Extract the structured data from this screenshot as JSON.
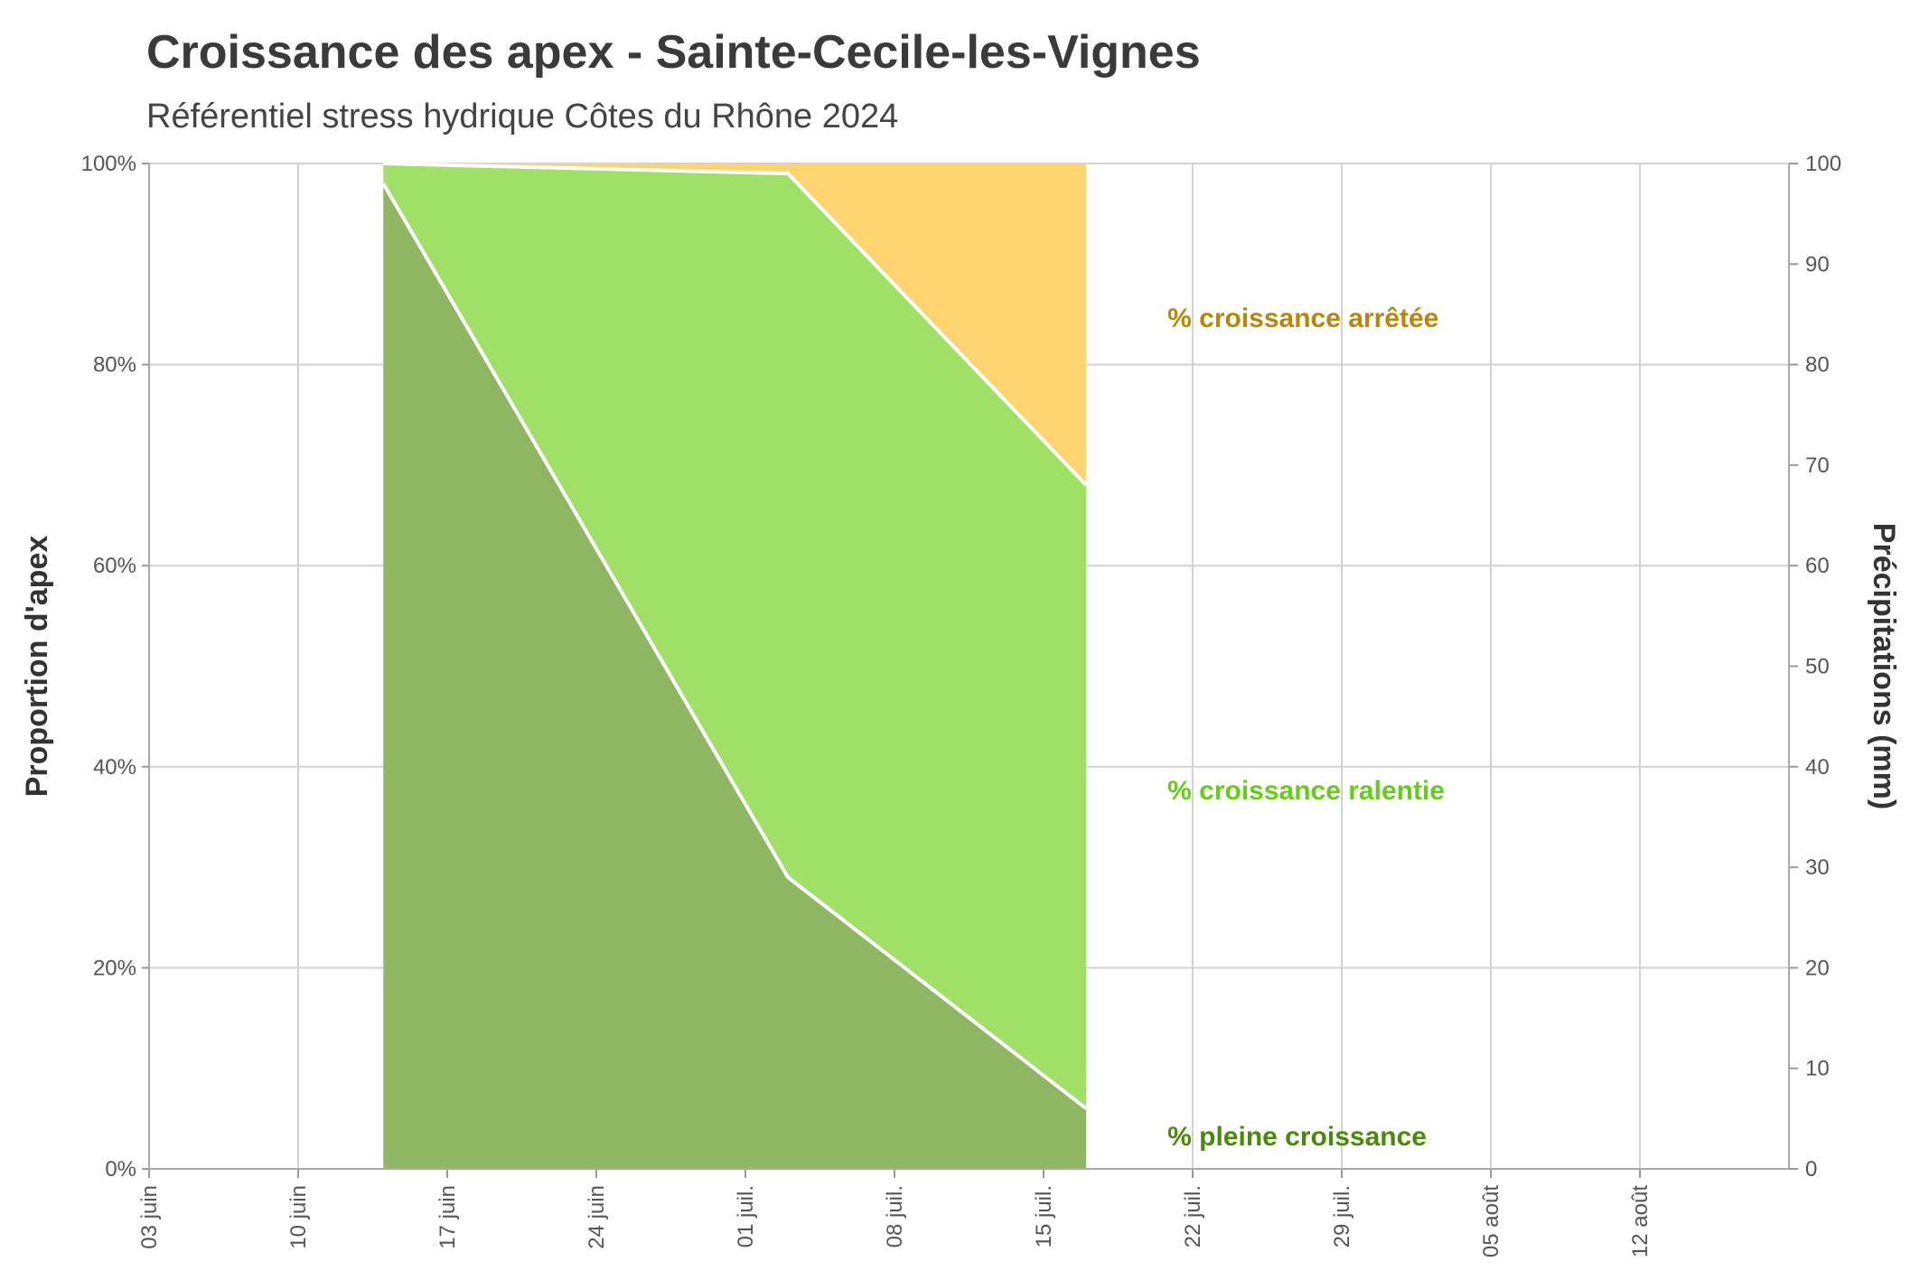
{
  "chart_data": {
    "type": "area",
    "title": "Croissance des apex - Sainte-Cecile-les-Vignes",
    "subtitle": "Référentiel stress hydrique Côtes du Rhône 2024",
    "ylabel": "Proportion d'apex",
    "y2label": "Précipitations (mm)",
    "ylim": [
      0,
      100
    ],
    "y2lim": [
      0,
      100
    ],
    "y_ticks": [
      "0%",
      "20%",
      "40%",
      "60%",
      "80%",
      "100%"
    ],
    "y2_ticks": [
      "0",
      "10",
      "20",
      "30",
      "40",
      "50",
      "60",
      "70",
      "80",
      "90",
      "100"
    ],
    "x_ticks": [
      "03 juin",
      "10 juin",
      "17 juin",
      "24 juin",
      "01 juil.",
      "08 juil.",
      "15 juil.",
      "22 juil.",
      "29 juil.",
      "05 août",
      "12 août"
    ],
    "x_dates": [
      "2024-06-14",
      "2024-07-03",
      "2024-07-17"
    ],
    "series": [
      {
        "name": "% pleine croissance",
        "color": "#4a8a0a",
        "fill": "#8fb663",
        "values": [
          98,
          29,
          6
        ]
      },
      {
        "name": "% croissance ralentie",
        "color": "#66cc1a",
        "fill": "#a1e066",
        "values": [
          2,
          70,
          62
        ]
      },
      {
        "name": "% croissance arrêtée",
        "color": "#b8860b",
        "fill": "#ffd470",
        "values": [
          0,
          1,
          32
        ]
      }
    ],
    "grid": true
  }
}
